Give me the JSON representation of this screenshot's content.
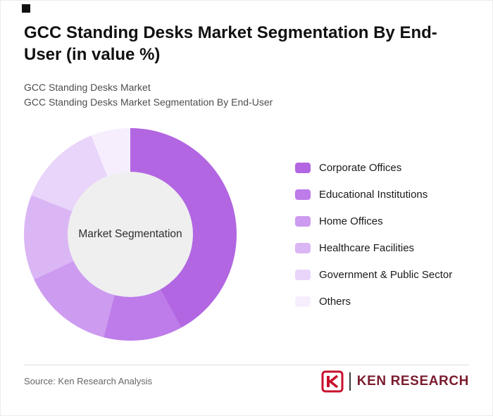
{
  "header": {
    "title": "GCC Standing Desks Market Segmentation By End-User (in value %)",
    "subtitle1": "GCC Standing Desks Market",
    "subtitle2": "GCC Standing Desks Market Segmentation By End-User"
  },
  "chart_data": {
    "type": "pie",
    "style": "donut",
    "title": "GCC Standing Desks Market Segmentation By End-User (in value %)",
    "center_label": "Market Segmentation",
    "legend_position": "right",
    "start_angle_deg": 0,
    "direction": "clockwise",
    "hole_color": "#efeff0",
    "segments": [
      {
        "label": "Corporate Offices",
        "value": 42,
        "color": "#b266e2"
      },
      {
        "label": "Educational Institutions",
        "value": 12,
        "color": "#bd7ce9"
      },
      {
        "label": "Home Offices",
        "value": 14,
        "color": "#cd9bef"
      },
      {
        "label": "Healthcare Facilities",
        "value": 13,
        "color": "#dbb6f5"
      },
      {
        "label": "Government & Public Sector",
        "value": 13,
        "color": "#e9d4fa"
      },
      {
        "label": "Others",
        "value": 6,
        "color": "#f6eefd"
      }
    ]
  },
  "footer": {
    "source": "Source: Ken Research Analysis",
    "logo_text": "KEN RESEARCH",
    "logo_icon": "ken-research-k-shield-icon",
    "brand_color": "#c8102e"
  }
}
